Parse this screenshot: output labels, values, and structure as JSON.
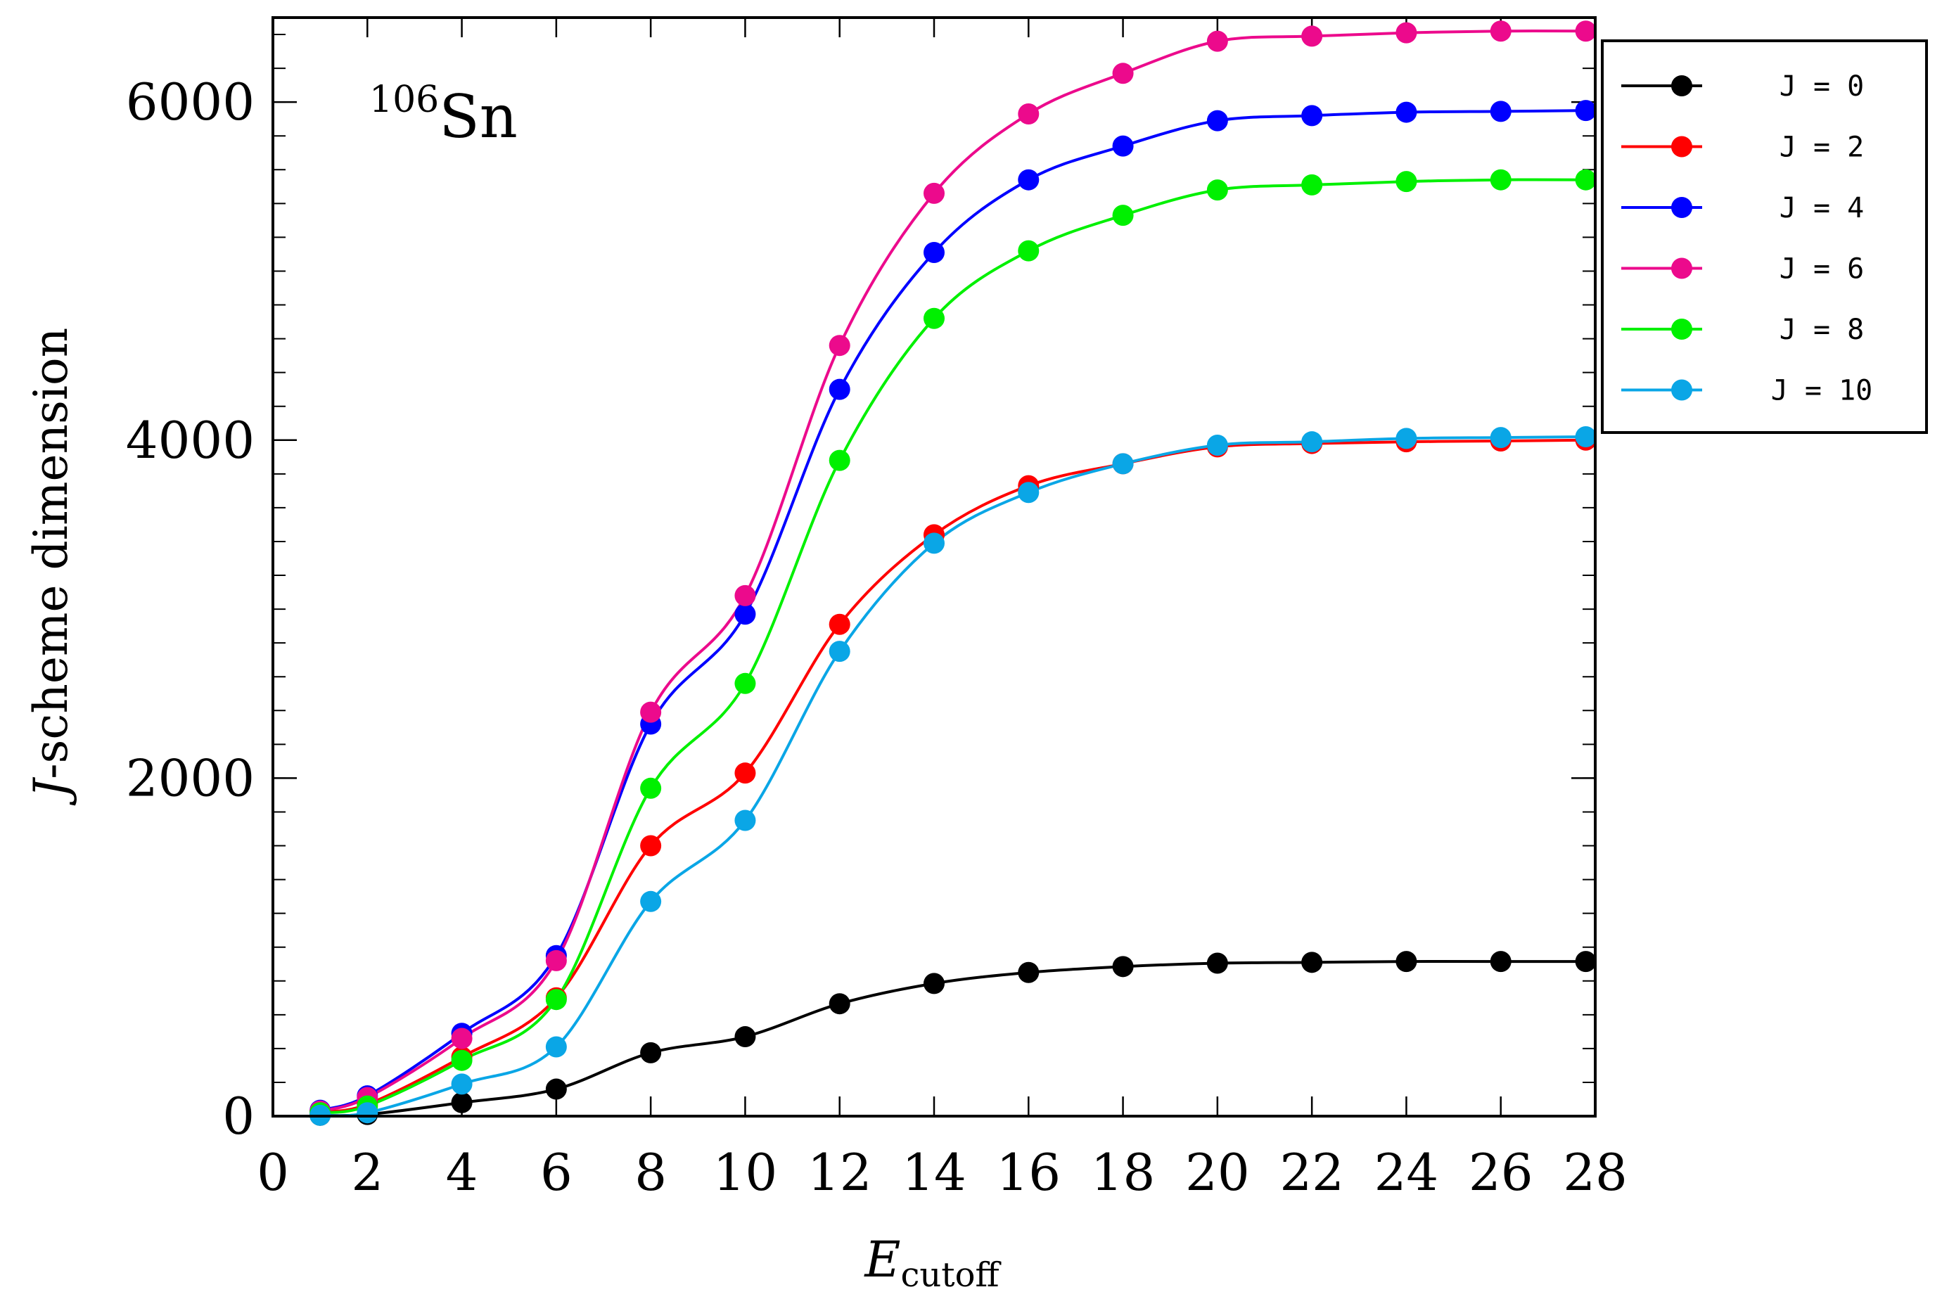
{
  "chart_data": {
    "type": "line",
    "title": "",
    "annotation": {
      "mass": "106",
      "element": "Sn"
    },
    "xlabel": {
      "main": "E",
      "sub": "cutoff"
    },
    "ylabel": {
      "italic": "J",
      "rest": "-scheme dimension"
    },
    "xlim": [
      0,
      28
    ],
    "ylim": [
      0,
      6500
    ],
    "xticks": [
      "0",
      "2",
      "4",
      "6",
      "8",
      "10",
      "12",
      "14",
      "16",
      "18",
      "20",
      "22",
      "24",
      "26",
      "28"
    ],
    "yticks": [
      "0",
      "2000",
      "4000",
      "6000"
    ],
    "x": [
      1,
      2,
      4,
      6,
      8,
      10,
      12,
      14,
      16,
      18,
      20,
      22,
      24,
      26,
      27.8
    ],
    "legend_position": "outside-top-right",
    "series": [
      {
        "name": "J = 0",
        "color": "#000000",
        "values": [
          5,
          10,
          80,
          160,
          375,
          470,
          665,
          785,
          850,
          885,
          905,
          910,
          915,
          915,
          915
        ]
      },
      {
        "name": "J = 2",
        "color": "#ff0000",
        "values": [
          25,
          70,
          350,
          700,
          1600,
          2030,
          2910,
          3440,
          3730,
          3860,
          3960,
          3980,
          3990,
          3995,
          4000
        ]
      },
      {
        "name": "J = 4",
        "color": "#0000ff",
        "values": [
          35,
          120,
          490,
          950,
          2320,
          2970,
          4300,
          5110,
          5540,
          5740,
          5890,
          5920,
          5940,
          5945,
          5950
        ]
      },
      {
        "name": "J = 6",
        "color": "#ec0a8c",
        "values": [
          30,
          110,
          460,
          920,
          2390,
          3080,
          4560,
          5460,
          5930,
          6170,
          6360,
          6390,
          6410,
          6420,
          6420
        ]
      },
      {
        "name": "J = 8",
        "color": "#00f000",
        "values": [
          20,
          60,
          330,
          690,
          1940,
          2560,
          3880,
          4720,
          5120,
          5330,
          5480,
          5510,
          5530,
          5540,
          5540
        ]
      },
      {
        "name": "J = 10",
        "color": "#0aa6e6",
        "values": [
          5,
          20,
          190,
          410,
          1270,
          1750,
          2750,
          3390,
          3690,
          3860,
          3970,
          3990,
          4010,
          4015,
          4020
        ]
      }
    ]
  }
}
